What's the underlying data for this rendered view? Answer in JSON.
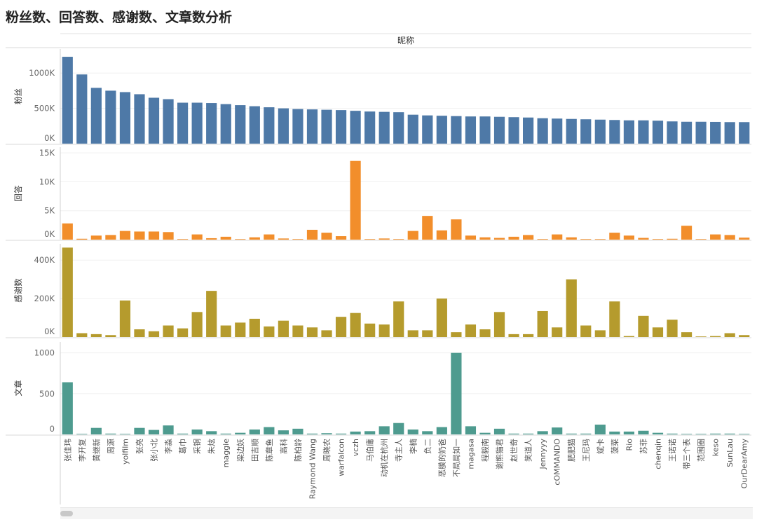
{
  "page": {
    "title": "粉丝数、回答数、感谢数、文章数分析"
  },
  "chart_data": {
    "type": "bar",
    "title": "粉丝数、回答数、感谢数、文章数分析",
    "column_header": "昵称",
    "categories": [
      "张佳玮",
      "李开复",
      "黄继新",
      "周源",
      "yolfilm",
      "张亮",
      "张小北",
      "李淼",
      "葛巾",
      "采铜",
      "朱炫",
      "maggie",
      "梁边妖",
      "田吉顺",
      "陈章鱼",
      "高科",
      "陈柏龄",
      "Raymond Wang",
      "周晓农",
      "warfalcon",
      "vczh",
      "马伯庸",
      "动机在杭州",
      "寺主人",
      "李楠",
      "负二",
      "恶膜的奶爸",
      "不局局如一",
      "magasa",
      "程毅南",
      "谢熊猫君",
      "赵世奇",
      "笑道人",
      "Jennyyy",
      "cOMMANDO",
      "肥肥猫",
      "王尼玛",
      "斌卡",
      "菠菜",
      "Rio",
      "苏菲",
      "chenqin",
      "王诺诺",
      "带三个表",
      "范围圈",
      "keso",
      "SunLau",
      "OurDearAmy"
    ],
    "series": [
      {
        "name": "粉丝",
        "color": "#4e79a7",
        "ticks": [
          0,
          500000,
          1000000
        ],
        "tick_labels": [
          "0K",
          "500K",
          "1000K"
        ],
        "ymax": 1300000,
        "values": [
          1230000,
          980000,
          790000,
          750000,
          730000,
          700000,
          650000,
          630000,
          580000,
          580000,
          575000,
          560000,
          545000,
          530000,
          515000,
          500000,
          490000,
          485000,
          480000,
          475000,
          465000,
          455000,
          450000,
          445000,
          410000,
          400000,
          395000,
          390000,
          385000,
          385000,
          380000,
          375000,
          370000,
          360000,
          355000,
          350000,
          345000,
          340000,
          335000,
          330000,
          330000,
          325000,
          315000,
          310000,
          310000,
          308000,
          305000,
          305000
        ]
      },
      {
        "name": "回答",
        "color": "#f28e2b",
        "ticks": [
          0,
          5000,
          10000,
          15000
        ],
        "tick_labels": [
          "0K",
          "5K",
          "10K",
          "15K"
        ],
        "ymax": 15500,
        "values": [
          2800,
          150,
          700,
          800,
          1500,
          1400,
          1400,
          1300,
          50,
          900,
          250,
          500,
          20,
          400,
          900,
          200,
          100,
          1700,
          1200,
          600,
          13600,
          100,
          200,
          100,
          1500,
          4100,
          1600,
          3500,
          700,
          400,
          300,
          500,
          800,
          100,
          900,
          400,
          100,
          50,
          1200,
          700,
          300,
          100,
          150,
          2400,
          50,
          900,
          800,
          350
        ]
      },
      {
        "name": "感谢数",
        "color": "#b59b2d",
        "ticks": [
          0,
          200000,
          400000
        ],
        "tick_labels": [
          "0K",
          "200K",
          "400K"
        ],
        "ymax": 470000,
        "values": [
          465000,
          20000,
          15000,
          10000,
          190000,
          40000,
          30000,
          60000,
          45000,
          130000,
          240000,
          60000,
          75000,
          95000,
          55000,
          85000,
          60000,
          50000,
          35000,
          105000,
          125000,
          70000,
          65000,
          185000,
          35000,
          35000,
          200000,
          25000,
          65000,
          40000,
          130000,
          15000,
          15000,
          135000,
          50000,
          300000,
          60000,
          35000,
          185000,
          5000,
          110000,
          50000,
          90000,
          25000,
          1000,
          5000,
          20000,
          10000
        ]
      },
      {
        "name": "文章",
        "color": "#4e9b8f",
        "ticks": [
          0,
          500,
          1000
        ],
        "tick_labels": [
          "0",
          "500",
          "1000"
        ],
        "ymax": 1100,
        "values": [
          640,
          5,
          80,
          10,
          5,
          80,
          55,
          110,
          10,
          60,
          40,
          10,
          20,
          60,
          90,
          50,
          70,
          10,
          15,
          10,
          35,
          40,
          100,
          140,
          60,
          40,
          90,
          1000,
          100,
          20,
          70,
          10,
          10,
          40,
          85,
          10,
          10,
          120,
          35,
          35,
          45,
          20,
          10,
          5,
          5,
          10,
          10,
          5
        ]
      }
    ]
  }
}
